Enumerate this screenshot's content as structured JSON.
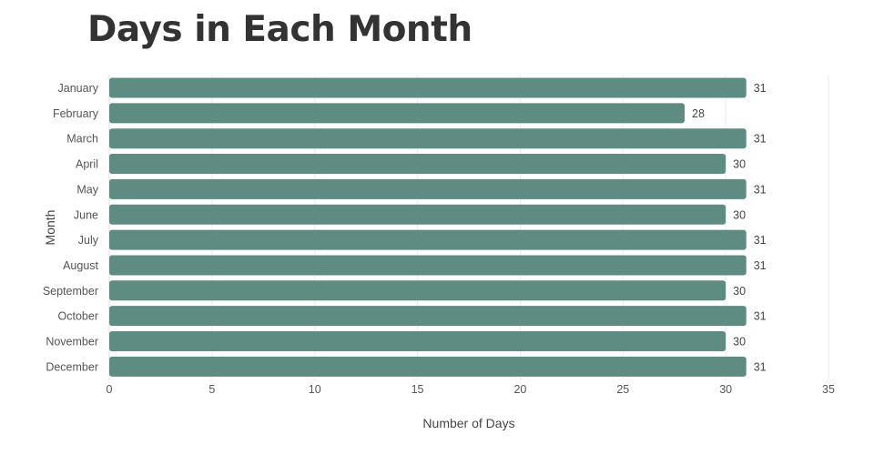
{
  "chart_data": {
    "type": "bar",
    "orientation": "horizontal",
    "title": "Days in Each Month",
    "xlabel": "Number of Days",
    "ylabel": "Month",
    "categories": [
      "January",
      "February",
      "March",
      "April",
      "May",
      "June",
      "July",
      "August",
      "September",
      "October",
      "November",
      "December"
    ],
    "values": [
      31,
      28,
      31,
      30,
      31,
      30,
      31,
      31,
      30,
      31,
      30,
      31
    ],
    "xlim": [
      0,
      35
    ],
    "xticks": [
      0,
      5,
      10,
      15,
      20,
      25,
      30,
      35
    ],
    "bar_color": "#5e8b82",
    "grid": "vertical",
    "legend": "none",
    "data_labels": true
  }
}
